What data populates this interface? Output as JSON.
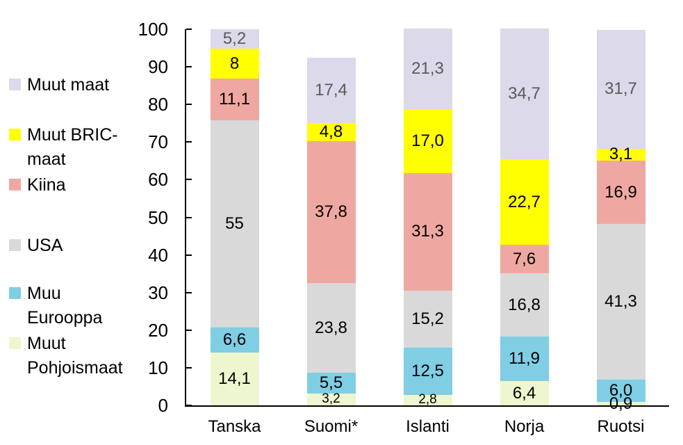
{
  "chart_data": {
    "type": "bar",
    "stacked": true,
    "title": "",
    "xlabel": "",
    "ylabel": "",
    "ylim": [
      0,
      100
    ],
    "grid": false,
    "legend_position": "left",
    "categories": [
      "Tanska",
      "Suomi*",
      "Islanti",
      "Norja",
      "Ruotsi"
    ],
    "yticks": [
      "0",
      "10",
      "20",
      "30",
      "40",
      "50",
      "60",
      "70",
      "80",
      "90",
      "100"
    ],
    "legend_order": [
      "Muut maat",
      "Muut BRIC-maat",
      "Kiina",
      "USA",
      "Muu Eurooppa",
      "Muut Pohjoismaat"
    ],
    "series": [
      {
        "name": "Muut Pohjoismaat",
        "color": "#EDF6CE",
        "values": [
          14.1,
          3.2,
          2.8,
          6.4,
          0.9
        ],
        "labels": [
          "14,1",
          "3,2",
          "2,8",
          "6,4",
          "0,9"
        ],
        "small_label": [
          false,
          true,
          true,
          false,
          false
        ],
        "label_color": "#000000"
      },
      {
        "name": "Muu Eurooppa",
        "color": "#7FCEE4",
        "values": [
          6.6,
          5.5,
          12.5,
          11.9,
          6.0
        ],
        "labels": [
          "6,6",
          "5,5",
          "12,5",
          "11,9",
          "6,0"
        ],
        "small_label": [
          false,
          false,
          false,
          false,
          false
        ],
        "label_color": "#000000"
      },
      {
        "name": "USA",
        "color": "#D9D9D9",
        "values": [
          55,
          23.8,
          15.2,
          16.8,
          41.3
        ],
        "labels": [
          "55",
          "23,8",
          "15,2",
          "16,8",
          "41,3"
        ],
        "small_label": [
          false,
          false,
          false,
          false,
          false
        ],
        "label_color": "#000000"
      },
      {
        "name": "Kiina",
        "color": "#EFA8A1",
        "values": [
          11.1,
          37.8,
          31.3,
          7.6,
          16.9
        ],
        "labels": [
          "11,1",
          "37,8",
          "31,3",
          "7,6",
          "16,9"
        ],
        "small_label": [
          false,
          false,
          false,
          false,
          false
        ],
        "label_color": "#000000"
      },
      {
        "name": "Muut BRIC-maat",
        "color": "#FFFF00",
        "values": [
          8,
          4.8,
          17.0,
          22.7,
          3.1
        ],
        "labels": [
          "8",
          "4,8",
          "17,0",
          "22,7",
          "3,1"
        ],
        "small_label": [
          false,
          false,
          false,
          false,
          false
        ],
        "label_color": "#000000"
      },
      {
        "name": "Muut maat",
        "color": "#DCD9EA",
        "values": [
          5.2,
          17.4,
          21.3,
          34.7,
          31.7
        ],
        "labels": [
          "5,2",
          "17,4",
          "21,3",
          "34,7",
          "31,7"
        ],
        "small_label": [
          false,
          false,
          false,
          false,
          false
        ],
        "label_color": "#595959"
      }
    ]
  }
}
